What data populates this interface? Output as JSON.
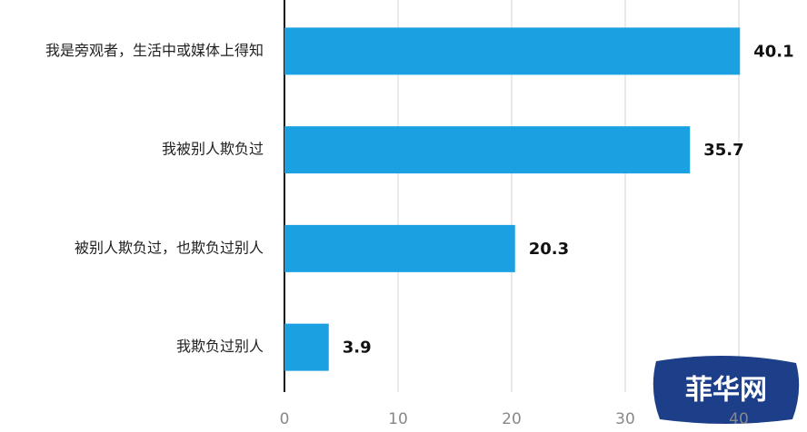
{
  "chart_data": {
    "type": "barh",
    "categories": [
      "我是旁观者，生活中或媒体上得知",
      "我被别人欺负过",
      "被别人欺负过，也欺负过别人",
      "我欺负过别人"
    ],
    "values": [
      40.1,
      35.7,
      20.3,
      3.9
    ],
    "color": "#1ba1e2",
    "xlim": [
      0,
      46
    ],
    "xticks": [
      0,
      10,
      20,
      30,
      40
    ],
    "grid": true,
    "watermark": "菲华网"
  }
}
